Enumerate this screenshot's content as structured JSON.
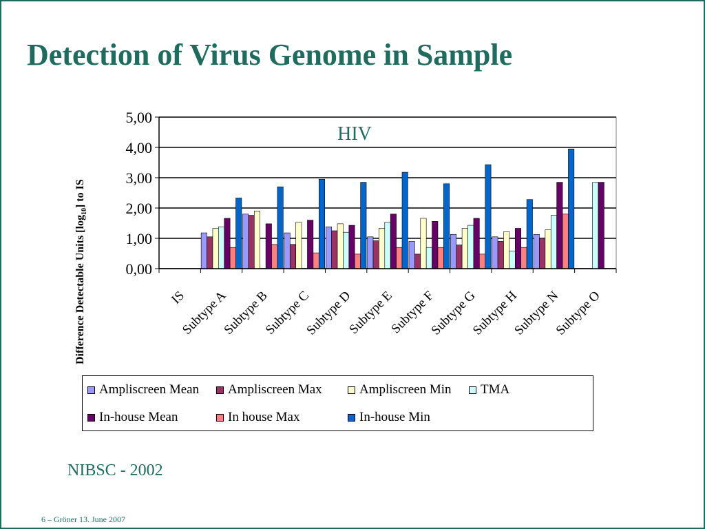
{
  "title": "Detection of Virus Genome in Sample",
  "source_note": "NIBSC - 2002",
  "footer": "6 – Gröner 13. June 2007",
  "chart_data": {
    "type": "bar",
    "title": "HIV",
    "ylabel_parts": [
      "Difference Detectable Units [log",
      "10",
      "] to IS"
    ],
    "ylim": [
      0,
      5
    ],
    "yticks": [
      "0,00",
      "1,00",
      "2,00",
      "3,00",
      "4,00",
      "5,00"
    ],
    "grid": true,
    "legend_position": "bottom",
    "categories": [
      "IS",
      "Subtype A",
      "Subtype B",
      "Subtype C",
      "Subtype D",
      "Subtype E",
      "Subtype F",
      "Subtype G",
      "Subtype H",
      "Subtype N",
      "Subtype O"
    ],
    "series": [
      {
        "name": "Ampliscreen Mean",
        "color": "#9999ff",
        "values": [
          null,
          1.18,
          1.8,
          1.18,
          1.38,
          1.05,
          0.9,
          1.13,
          1.05,
          1.13,
          null
        ]
      },
      {
        "name": "Ampliscreen Max",
        "color": "#993366",
        "values": [
          null,
          1.05,
          1.76,
          0.8,
          1.25,
          0.92,
          0.48,
          0.78,
          0.9,
          1.0,
          null
        ]
      },
      {
        "name": "Ampliscreen Min",
        "color": "#ffffcc",
        "values": [
          null,
          1.33,
          1.9,
          1.53,
          1.48,
          1.33,
          1.66,
          1.33,
          1.22,
          1.28,
          null
        ]
      },
      {
        "name": "TMA",
        "color": "#ccffff",
        "values": [
          null,
          1.38,
          null,
          null,
          1.2,
          1.53,
          0.7,
          1.43,
          0.58,
          1.76,
          2.85
        ]
      },
      {
        "name": "In-house Mean",
        "color": "#660066",
        "values": [
          null,
          1.66,
          1.48,
          1.6,
          1.43,
          1.8,
          1.56,
          1.66,
          1.33,
          2.85,
          2.85
        ]
      },
      {
        "name": "In house Max",
        "color": "#ff8080",
        "values": [
          null,
          0.7,
          0.8,
          0.52,
          0.48,
          0.7,
          0.7,
          0.48,
          0.7,
          1.8,
          null
        ]
      },
      {
        "name": "In-house Min",
        "color": "#0066cc",
        "values": [
          null,
          2.33,
          2.7,
          2.95,
          2.85,
          3.18,
          2.8,
          3.43,
          2.28,
          3.95,
          null
        ]
      }
    ]
  }
}
